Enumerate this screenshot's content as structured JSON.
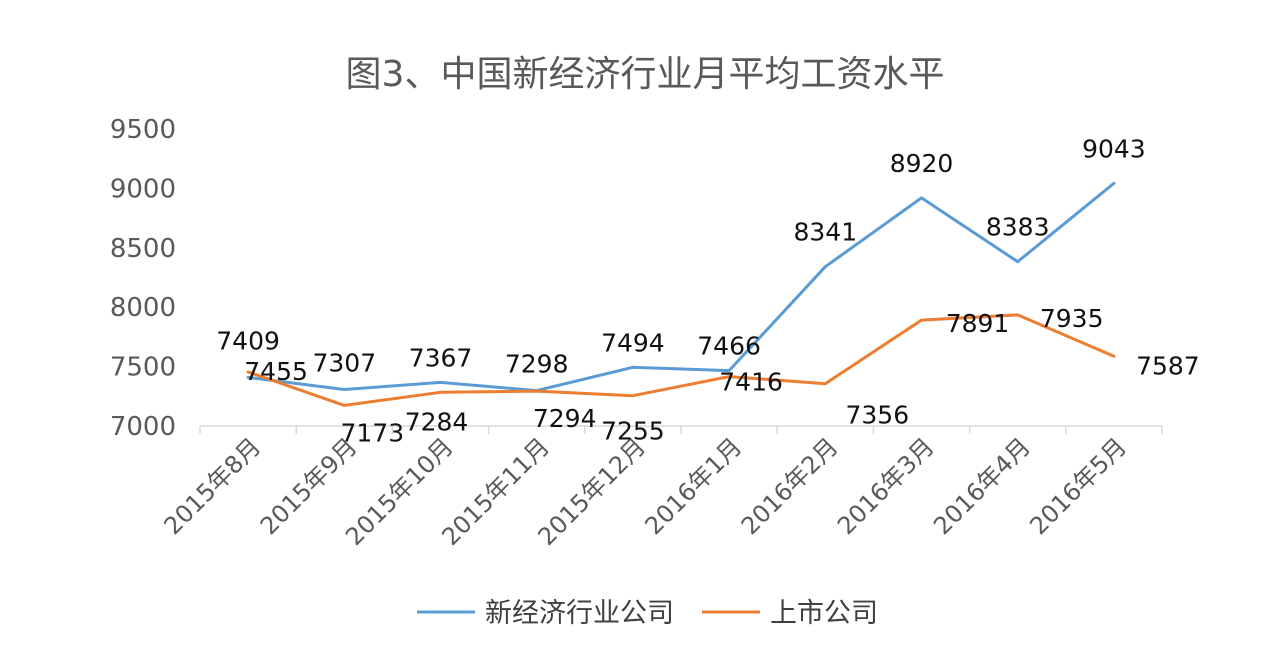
{
  "chart_data": {
    "type": "line",
    "title": "图3、中国新经济行业月平均工资水平",
    "categories": [
      "2015年8月",
      "2015年9月",
      "2015年10月",
      "2015年11月",
      "2015年12月",
      "2016年1月",
      "2016年2月",
      "2016年3月",
      "2016年4月",
      "2016年5月"
    ],
    "ylim": [
      7000,
      9500
    ],
    "yticks": [
      "7000",
      "7500",
      "8000",
      "8500",
      "9000",
      "9500"
    ],
    "grid": false,
    "legend_position": "bottom",
    "series": [
      {
        "name": "新经济行业公司",
        "color": "#5B9BD5",
        "values": [
          7409,
          7307,
          7367,
          7298,
          7494,
          7466,
          8341,
          8920,
          8383,
          9043
        ],
        "labels": [
          "7409",
          "7307",
          "7367",
          "7298",
          "7494",
          "7466",
          "8341",
          "8920",
          "8383",
          "9043"
        ]
      },
      {
        "name": "上市公司",
        "color": "#ED7D31",
        "values": [
          7455,
          7173,
          7284,
          7294,
          7255,
          7416,
          7356,
          7891,
          7935,
          7587
        ],
        "labels": [
          "7455",
          "7173",
          "7284",
          "7294",
          "7255",
          "7416",
          "7356",
          "7891",
          "7935",
          "7587"
        ]
      }
    ]
  }
}
